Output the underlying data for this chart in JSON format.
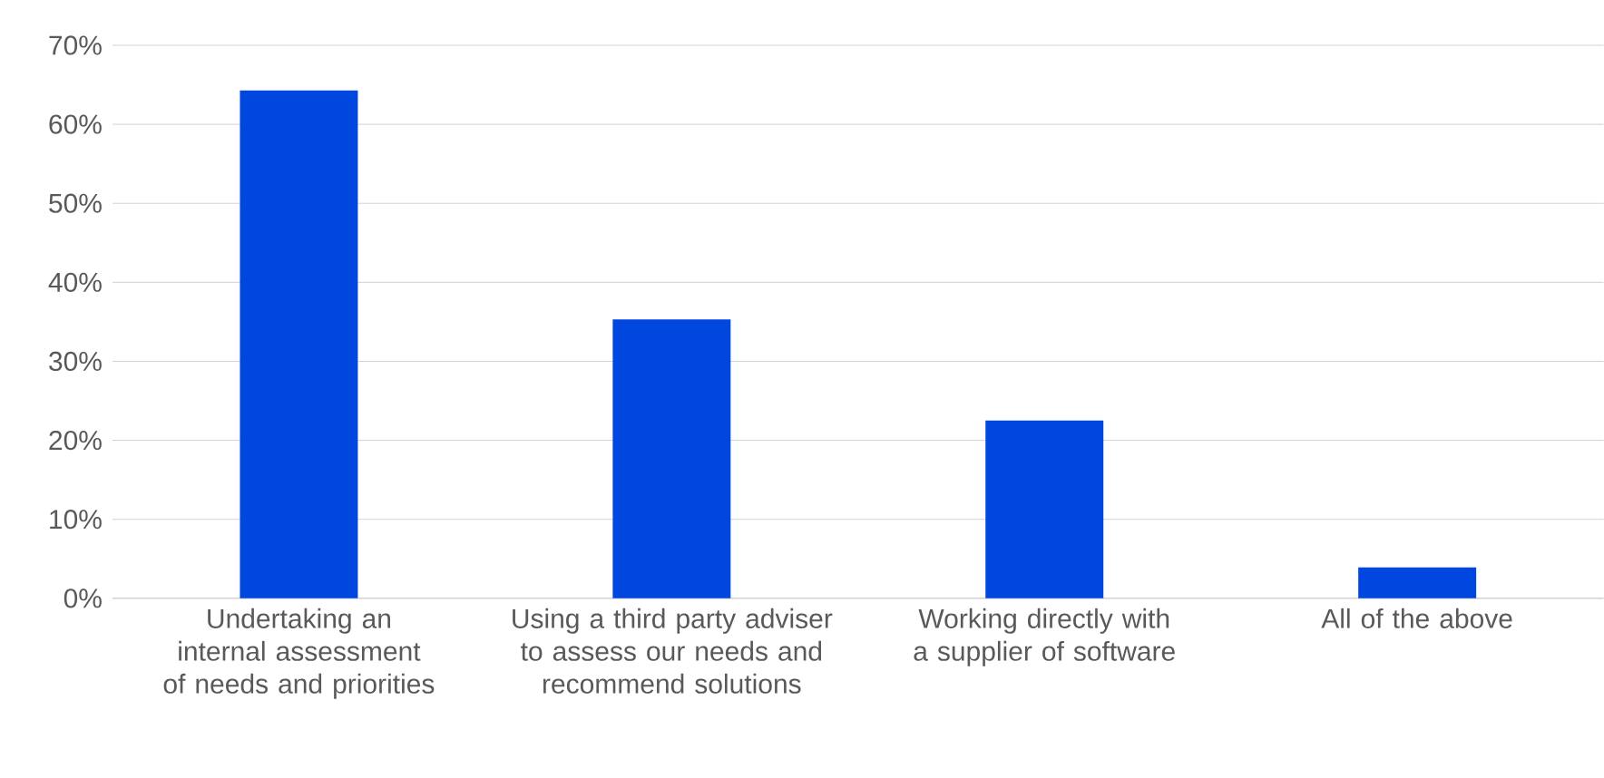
{
  "chart_data": {
    "type": "bar",
    "categories": [
      "Undertaking an internal assessment of needs and priorities",
      "Using a third party adviser to assess our needs and recommend solutions",
      "Working directly with a supplier of software",
      "All of the above"
    ],
    "values": [
      64.3,
      35.3,
      22.5,
      3.9
    ],
    "color": "#0047e0",
    "ylim": [
      0,
      70
    ],
    "yticks": [
      {
        "value": 0,
        "label": "0%"
      },
      {
        "value": 10,
        "label": "10%"
      },
      {
        "value": 20,
        "label": "20%"
      },
      {
        "value": 30,
        "label": "30%"
      },
      {
        "value": 40,
        "label": "40%"
      },
      {
        "value": 50,
        "label": "50%"
      },
      {
        "value": 60,
        "label": "60%"
      },
      {
        "value": 70,
        "label": "70%"
      }
    ],
    "grid": "y"
  }
}
